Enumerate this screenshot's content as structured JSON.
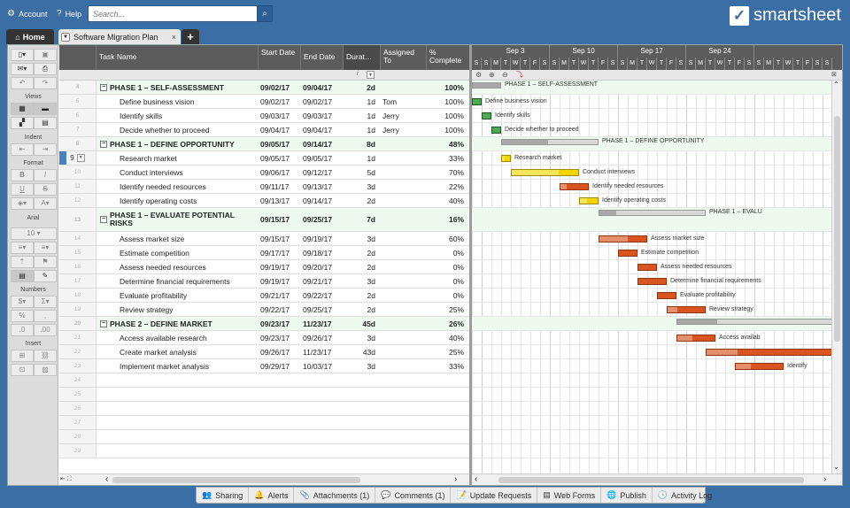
{
  "topbar": {
    "account_label": "Account",
    "help_label": "Help",
    "search_placeholder": "Search...",
    "brand": "smartsheet"
  },
  "tabs": {
    "home_label": "Home",
    "sheet_label": "Software Migration Plan"
  },
  "toolbar": {
    "views_label": "Views",
    "indent_label": "Indent",
    "format_label": "Format",
    "font_label": "Arial",
    "font_size": "10",
    "numbers_label": "Numbers",
    "insert_label": "Insert"
  },
  "columns": {
    "task": "Task Name",
    "start": "Start Date",
    "end": "End Date",
    "duration": "Durat…",
    "assigned": "Assigned To",
    "pct": "% Complete"
  },
  "rows": [
    {
      "num": "4",
      "task": "PHASE 1 – SELF-ASSESSMENT",
      "start": "09/02/17",
      "end": "09/04/17",
      "dur": "2d",
      "assigned": "",
      "pct": "100%",
      "phase": true
    },
    {
      "num": "5",
      "task": "Define business vision",
      "start": "09/02/17",
      "end": "09/02/17",
      "dur": "1d",
      "assigned": "Tom",
      "pct": "100%"
    },
    {
      "num": "6",
      "task": "Identify skills",
      "start": "09/03/17",
      "end": "09/03/17",
      "dur": "1d",
      "assigned": "Jerry",
      "pct": "100%"
    },
    {
      "num": "7",
      "task": "Decide whether to proceed",
      "start": "09/04/17",
      "end": "09/04/17",
      "dur": "1d",
      "assigned": "Jerry",
      "pct": "100%"
    },
    {
      "num": "8",
      "task": "PHASE 1 – DEFINE OPPORTUNITY",
      "start": "09/05/17",
      "end": "09/14/17",
      "dur": "8d",
      "assigned": "",
      "pct": "48%",
      "phase": true
    },
    {
      "num": "9",
      "task": "Research market",
      "start": "09/05/17",
      "end": "09/05/17",
      "dur": "1d",
      "assigned": "",
      "pct": "33%",
      "selected": true
    },
    {
      "num": "10",
      "task": "Conduct interviews",
      "start": "09/06/17",
      "end": "09/12/17",
      "dur": "5d",
      "assigned": "",
      "pct": "70%"
    },
    {
      "num": "11",
      "task": "Identify needed resources",
      "start": "09/11/17",
      "end": "09/13/17",
      "dur": "3d",
      "assigned": "",
      "pct": "22%"
    },
    {
      "num": "12",
      "task": "Identify operating costs",
      "start": "09/13/17",
      "end": "09/14/17",
      "dur": "2d",
      "assigned": "",
      "pct": "40%"
    },
    {
      "num": "13",
      "task": "PHASE 1 – EVALUATE POTENTIAL RISKS",
      "start": "09/15/17",
      "end": "09/25/17",
      "dur": "7d",
      "assigned": "",
      "pct": "16%",
      "phase": true,
      "tall": true
    },
    {
      "num": "14",
      "task": "Assess market size",
      "start": "09/15/17",
      "end": "09/19/17",
      "dur": "3d",
      "assigned": "",
      "pct": "60%"
    },
    {
      "num": "15",
      "task": "Estimate competition",
      "start": "09/17/17",
      "end": "09/18/17",
      "dur": "2d",
      "assigned": "",
      "pct": "0%"
    },
    {
      "num": "16",
      "task": "Assess needed resources",
      "start": "09/19/17",
      "end": "09/20/17",
      "dur": "2d",
      "assigned": "",
      "pct": "0%"
    },
    {
      "num": "17",
      "task": "Determine financial requirements",
      "start": "09/19/17",
      "end": "09/21/17",
      "dur": "3d",
      "assigned": "",
      "pct": "0%"
    },
    {
      "num": "18",
      "task": "Evaluate profitability",
      "start": "09/21/17",
      "end": "09/22/17",
      "dur": "2d",
      "assigned": "",
      "pct": "0%"
    },
    {
      "num": "19",
      "task": "Review strategy",
      "start": "09/22/17",
      "end": "09/25/17",
      "dur": "2d",
      "assigned": "",
      "pct": "25%"
    },
    {
      "num": "20",
      "task": "PHASE 2 – DEFINE MARKET",
      "start": "09/23/17",
      "end": "11/23/17",
      "dur": "45d",
      "assigned": "",
      "pct": "26%",
      "phase": true
    },
    {
      "num": "21",
      "task": "Access available research",
      "start": "09/23/17",
      "end": "09/26/17",
      "dur": "3d",
      "assigned": "",
      "pct": "40%"
    },
    {
      "num": "22",
      "task": "Create market analysis",
      "start": "09/26/17",
      "end": "11/23/17",
      "dur": "43d",
      "assigned": "",
      "pct": "25%"
    },
    {
      "num": "23",
      "task": "Implement market analysis",
      "start": "09/29/17",
      "end": "10/03/17",
      "dur": "3d",
      "assigned": "",
      "pct": "33%"
    },
    {
      "num": "24"
    },
    {
      "num": "25"
    },
    {
      "num": "26"
    },
    {
      "num": "27"
    },
    {
      "num": "28"
    },
    {
      "num": "29"
    }
  ],
  "gantt": {
    "weeks": [
      "Sep 3",
      "Sep 10",
      "Sep 17",
      "Sep 24"
    ],
    "days": [
      "S",
      "S",
      "M",
      "T",
      "W",
      "T",
      "F",
      "S",
      "S",
      "M",
      "T",
      "W",
      "T",
      "F",
      "S",
      "S",
      "M",
      "T",
      "W",
      "T",
      "F",
      "S",
      "S",
      "M",
      "T",
      "W",
      "T",
      "F",
      "S",
      "S",
      "M",
      "T",
      "W",
      "T",
      "F",
      "S",
      "S"
    ],
    "labels": [
      "PHASE 1 – SELF-ASSESSMENT",
      "Define business vision",
      "Identify skills",
      "Decide whether to proceed",
      "PHASE 1 – DEFINE OPPORTUNITY",
      "Research market",
      "Conduct interviews",
      "Identify needed resources",
      "Identify operating costs",
      "PHASE 1 – EVALU",
      "Assess market size",
      "Estimate competition",
      "Assess needed resources",
      "Determine financial requirements",
      "Evaluate profitability",
      "Review strategy",
      "",
      "Access availab",
      "",
      "Identify"
    ],
    "bars": [
      {
        "start": "09/02/17",
        "end": "09/04/17",
        "pct": 100,
        "phase": true
      },
      {
        "start": "09/02/17",
        "end": "09/02/17",
        "pct": 100
      },
      {
        "start": "09/03/17",
        "end": "09/03/17",
        "pct": 100
      },
      {
        "start": "09/04/17",
        "end": "09/04/17",
        "pct": 100
      },
      {
        "start": "09/05/17",
        "end": "09/14/17",
        "pct": 48,
        "phase": true
      },
      {
        "start": "09/05/17",
        "end": "09/05/17",
        "pct": 33
      },
      {
        "start": "09/06/17",
        "end": "09/12/17",
        "pct": 70
      },
      {
        "start": "09/11/17",
        "end": "09/13/17",
        "pct": 22
      },
      {
        "start": "09/13/17",
        "end": "09/14/17",
        "pct": 40
      },
      {
        "start": "09/15/17",
        "end": "09/25/17",
        "pct": 16,
        "phase": true
      },
      {
        "start": "09/15/17",
        "end": "09/19/17",
        "pct": 60
      },
      {
        "start": "09/17/17",
        "end": "09/18/17",
        "pct": 0
      },
      {
        "start": "09/19/17",
        "end": "09/20/17",
        "pct": 0
      },
      {
        "start": "09/19/17",
        "end": "09/21/17",
        "pct": 0
      },
      {
        "start": "09/21/17",
        "end": "09/22/17",
        "pct": 0
      },
      {
        "start": "09/22/17",
        "end": "09/25/17",
        "pct": 25
      },
      {
        "start": "09/23/17",
        "end": "11/23/17",
        "pct": 26,
        "phase": true
      },
      {
        "start": "09/23/17",
        "end": "09/26/17",
        "pct": 40
      },
      {
        "start": "09/26/17",
        "end": "11/23/17",
        "pct": 25
      },
      {
        "start": "09/29/17",
        "end": "10/03/17",
        "pct": 33
      }
    ]
  },
  "colors": {
    "complete": "#2e8b3a",
    "in_progress": "#f2d600",
    "late": "#d9541e",
    "phase": "#d8d8d8"
  },
  "bottombar": [
    {
      "icon": "sharing-icon",
      "glyph": "👥",
      "label": "Sharing"
    },
    {
      "icon": "bell-icon",
      "glyph": "🔔",
      "label": "Alerts"
    },
    {
      "icon": "paperclip-icon",
      "glyph": "📎",
      "label": "Attachments (1)"
    },
    {
      "icon": "comment-icon",
      "glyph": "💬",
      "label": "Comments (1)"
    },
    {
      "icon": "update-request-icon",
      "glyph": "📝",
      "label": "Update Requests"
    },
    {
      "icon": "web-form-icon",
      "glyph": "▤",
      "label": "Web Forms"
    },
    {
      "icon": "globe-icon",
      "glyph": "🌐",
      "label": "Publish"
    },
    {
      "icon": "history-icon",
      "glyph": "🕓",
      "label": "Activity Log"
    }
  ]
}
